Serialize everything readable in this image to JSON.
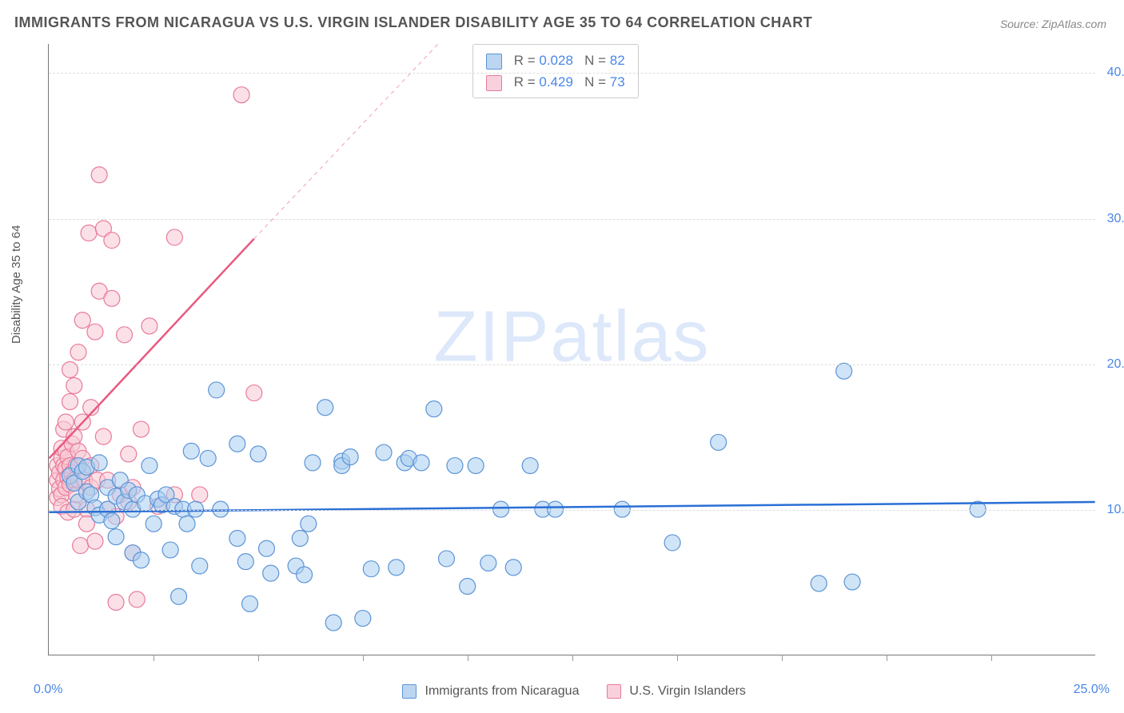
{
  "title": "IMMIGRANTS FROM NICARAGUA VS U.S. VIRGIN ISLANDER DISABILITY AGE 35 TO 64 CORRELATION CHART",
  "source": "Source: ZipAtlas.com",
  "y_axis_label": "Disability Age 35 to 64",
  "watermark_a": "ZIP",
  "watermark_b": "atlas",
  "chart": {
    "type": "scatter",
    "background_color": "#ffffff",
    "grid_color": "#dddddd",
    "axis_color": "#777777",
    "xlim": [
      0,
      25
    ],
    "ylim": [
      0,
      42
    ],
    "x_min_label": "0.0%",
    "x_max_label": "25.0%",
    "x_tick_positions": [
      2.5,
      5,
      7.5,
      10,
      12.5,
      15,
      17.5,
      20,
      22.5
    ],
    "y_ticks": [
      {
        "v": 10,
        "label": "10.0%"
      },
      {
        "v": 20,
        "label": "20.0%"
      },
      {
        "v": 30,
        "label": "30.0%"
      },
      {
        "v": 40,
        "label": "40.0%"
      }
    ],
    "marker_radius": 10,
    "marker_opacity": 0.55,
    "series": [
      {
        "name": "Immigrants from Nicaragua",
        "color_fill": "#a9cdf0",
        "color_stroke": "#5b94d6",
        "swatch_fill": "#bcd6f2",
        "swatch_stroke": "#5b94d6",
        "R": "0.028",
        "N": "82",
        "trend": {
          "x1": 0,
          "y1": 9.8,
          "x2": 25,
          "y2": 10.5,
          "color": "#2a6fd6",
          "width": 2.5,
          "dash": "0"
        },
        "points": [
          [
            0.5,
            12.3
          ],
          [
            0.6,
            11.8
          ],
          [
            0.7,
            13.0
          ],
          [
            0.7,
            10.5
          ],
          [
            0.8,
            12.6
          ],
          [
            0.9,
            11.2
          ],
          [
            0.9,
            12.9
          ],
          [
            1.0,
            11.0
          ],
          [
            1.1,
            10.1
          ],
          [
            1.2,
            13.2
          ],
          [
            1.2,
            9.6
          ],
          [
            1.4,
            11.5
          ],
          [
            1.4,
            10.0
          ],
          [
            1.5,
            9.2
          ],
          [
            1.6,
            10.9
          ],
          [
            1.6,
            8.1
          ],
          [
            1.7,
            12.0
          ],
          [
            1.8,
            10.5
          ],
          [
            1.9,
            11.3
          ],
          [
            2.0,
            7.0
          ],
          [
            2.0,
            10.0
          ],
          [
            2.1,
            11.0
          ],
          [
            2.2,
            6.5
          ],
          [
            2.3,
            10.4
          ],
          [
            2.4,
            13.0
          ],
          [
            2.5,
            9.0
          ],
          [
            2.6,
            10.7
          ],
          [
            2.7,
            10.3
          ],
          [
            2.8,
            11.0
          ],
          [
            2.9,
            7.2
          ],
          [
            3.0,
            10.2
          ],
          [
            3.1,
            4.0
          ],
          [
            3.2,
            10.0
          ],
          [
            3.3,
            9.0
          ],
          [
            3.4,
            14.0
          ],
          [
            3.5,
            10.0
          ],
          [
            3.6,
            6.1
          ],
          [
            3.8,
            13.5
          ],
          [
            4.0,
            18.2
          ],
          [
            4.1,
            10.0
          ],
          [
            4.5,
            8.0
          ],
          [
            4.5,
            14.5
          ],
          [
            4.7,
            6.4
          ],
          [
            4.8,
            3.5
          ],
          [
            5.0,
            13.8
          ],
          [
            5.2,
            7.3
          ],
          [
            5.3,
            5.6
          ],
          [
            5.9,
            6.1
          ],
          [
            6.0,
            8.0
          ],
          [
            6.1,
            5.5
          ],
          [
            6.2,
            9.0
          ],
          [
            6.3,
            13.2
          ],
          [
            6.6,
            17.0
          ],
          [
            6.8,
            2.2
          ],
          [
            7.0,
            13.3
          ],
          [
            7.0,
            13.0
          ],
          [
            7.2,
            13.6
          ],
          [
            7.5,
            2.5
          ],
          [
            7.7,
            5.9
          ],
          [
            8.0,
            13.9
          ],
          [
            8.3,
            6.0
          ],
          [
            8.5,
            13.2
          ],
          [
            8.6,
            13.5
          ],
          [
            8.9,
            13.2
          ],
          [
            9.2,
            16.9
          ],
          [
            9.5,
            6.6
          ],
          [
            9.7,
            13.0
          ],
          [
            10.0,
            4.7
          ],
          [
            10.2,
            13.0
          ],
          [
            10.5,
            6.3
          ],
          [
            10.8,
            10.0
          ],
          [
            11.1,
            6.0
          ],
          [
            11.5,
            13.0
          ],
          [
            11.8,
            10.0
          ],
          [
            12.1,
            10.0
          ],
          [
            13.7,
            10.0
          ],
          [
            14.9,
            7.7
          ],
          [
            16.0,
            14.6
          ],
          [
            18.4,
            4.9
          ],
          [
            19.0,
            19.5
          ],
          [
            19.2,
            5.0
          ],
          [
            22.2,
            10.0
          ]
        ]
      },
      {
        "name": "U.S. Virgin Islanders",
        "color_fill": "#f7c9d4",
        "color_stroke": "#e87a9a",
        "swatch_fill": "#f9d1dc",
        "swatch_stroke": "#e87a9a",
        "R": "0.429",
        "N": "73",
        "trend_solid": {
          "x1": 0,
          "y1": 13.5,
          "x2": 4.9,
          "y2": 28.6,
          "color": "#e85a80",
          "width": 2.5
        },
        "trend_dash": {
          "x1": 4.9,
          "y1": 28.6,
          "x2": 9.3,
          "y2": 42.0,
          "color": "#f2aebf",
          "width": 1.2,
          "dash": "5,5"
        },
        "points": [
          [
            0.2,
            12.0
          ],
          [
            0.2,
            13.0
          ],
          [
            0.2,
            10.8
          ],
          [
            0.25,
            11.4
          ],
          [
            0.25,
            12.5
          ],
          [
            0.3,
            13.5
          ],
          [
            0.3,
            11.0
          ],
          [
            0.3,
            14.2
          ],
          [
            0.3,
            10.2
          ],
          [
            0.35,
            12.0
          ],
          [
            0.35,
            15.5
          ],
          [
            0.35,
            13.0
          ],
          [
            0.4,
            11.5
          ],
          [
            0.4,
            12.8
          ],
          [
            0.4,
            14.0
          ],
          [
            0.4,
            16.0
          ],
          [
            0.45,
            12.2
          ],
          [
            0.45,
            13.6
          ],
          [
            0.45,
            9.8
          ],
          [
            0.5,
            11.7
          ],
          [
            0.5,
            13.0
          ],
          [
            0.5,
            17.4
          ],
          [
            0.5,
            19.6
          ],
          [
            0.55,
            12.5
          ],
          [
            0.55,
            14.5
          ],
          [
            0.6,
            10.0
          ],
          [
            0.6,
            12.0
          ],
          [
            0.6,
            15.0
          ],
          [
            0.6,
            18.5
          ],
          [
            0.65,
            13.0
          ],
          [
            0.65,
            11.0
          ],
          [
            0.7,
            20.8
          ],
          [
            0.7,
            12.0
          ],
          [
            0.7,
            14.0
          ],
          [
            0.75,
            7.5
          ],
          [
            0.8,
            13.5
          ],
          [
            0.8,
            16.0
          ],
          [
            0.8,
            23.0
          ],
          [
            0.85,
            12.0
          ],
          [
            0.9,
            10.0
          ],
          [
            0.9,
            9.0
          ],
          [
            0.95,
            29.0
          ],
          [
            1.0,
            13.0
          ],
          [
            1.0,
            11.5
          ],
          [
            1.0,
            17.0
          ],
          [
            1.1,
            22.2
          ],
          [
            1.1,
            7.8
          ],
          [
            1.15,
            12.0
          ],
          [
            1.2,
            25.0
          ],
          [
            1.2,
            33.0
          ],
          [
            1.3,
            29.3
          ],
          [
            1.3,
            15.0
          ],
          [
            1.4,
            10.0
          ],
          [
            1.4,
            12.0
          ],
          [
            1.5,
            24.5
          ],
          [
            1.5,
            28.5
          ],
          [
            1.6,
            9.5
          ],
          [
            1.6,
            3.6
          ],
          [
            1.7,
            11.0
          ],
          [
            1.8,
            22.0
          ],
          [
            1.9,
            10.5
          ],
          [
            1.9,
            13.8
          ],
          [
            2.0,
            11.5
          ],
          [
            2.0,
            7.0
          ],
          [
            2.1,
            3.8
          ],
          [
            2.2,
            15.5
          ],
          [
            2.4,
            22.6
          ],
          [
            2.6,
            10.2
          ],
          [
            3.0,
            11.0
          ],
          [
            3.0,
            28.7
          ],
          [
            3.6,
            11.0
          ],
          [
            4.6,
            38.5
          ],
          [
            4.9,
            18.0
          ]
        ]
      }
    ]
  },
  "bottom_legend": {
    "a_label": "Immigrants from Nicaragua",
    "b_label": "U.S. Virgin Islanders"
  }
}
